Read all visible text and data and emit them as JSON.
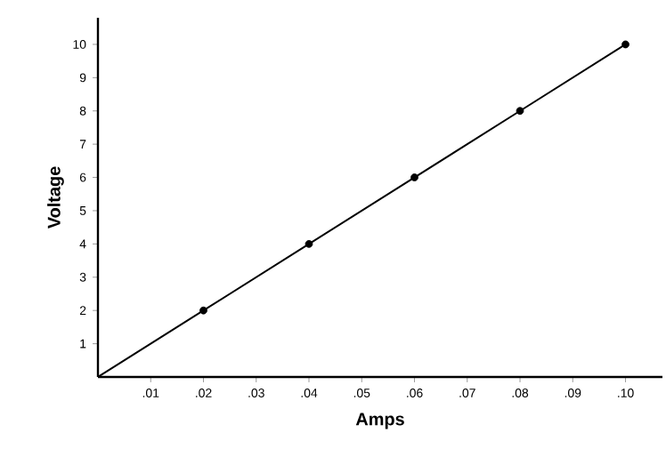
{
  "chart_data": {
    "type": "line",
    "xlabel": "Amps",
    "ylabel": "Voltage",
    "xlim": [
      0,
      0.107
    ],
    "ylim": [
      0,
      10.8
    ],
    "xticks": [
      {
        "value": 0.01,
        "label": ".01"
      },
      {
        "value": 0.02,
        "label": ".02"
      },
      {
        "value": 0.03,
        "label": ".03"
      },
      {
        "value": 0.04,
        "label": ".04"
      },
      {
        "value": 0.05,
        "label": ".05"
      },
      {
        "value": 0.06,
        "label": ".06"
      },
      {
        "value": 0.07,
        "label": ".07"
      },
      {
        "value": 0.08,
        "label": ".08"
      },
      {
        "value": 0.09,
        "label": ".09"
      },
      {
        "value": 0.1,
        "label": ".10"
      }
    ],
    "yticks": [
      1,
      2,
      3,
      4,
      5,
      6,
      7,
      8,
      9,
      10
    ],
    "series": [
      {
        "color": "#000000",
        "marker": "none",
        "x": [
          0,
          0.02,
          0.04,
          0.06,
          0.08,
          0.1
        ],
        "values": [
          0,
          2,
          4,
          6,
          8,
          10
        ]
      },
      {
        "type": "scatter",
        "color": "#000000",
        "marker": "circle",
        "x": [
          0.02,
          0.04,
          0.06,
          0.08,
          0.1
        ],
        "values": [
          2,
          4,
          6,
          8,
          10
        ]
      }
    ]
  }
}
